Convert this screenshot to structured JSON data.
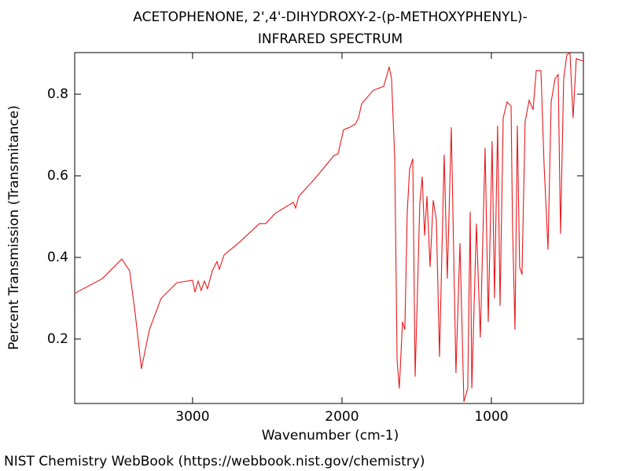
{
  "chart_data": {
    "type": "line",
    "title": "ACETOPHENONE, 2',4'-DIHYDROXY-2-(p-METHOXYPHENYL)-",
    "subtitle": "INFRARED SPECTRUM",
    "x_label": "Wavenumber (cm-1)",
    "y_label": "Percent Transmission (Transmitance)",
    "footer": "NIST Chemistry WebBook (https://webbook.nist.gov/chemistry)",
    "color": "#e8191c",
    "x_reversed": true,
    "xlim": [
      3789,
      384
    ],
    "ylim": [
      0.042,
      0.902
    ],
    "xticks": [
      3000,
      2000,
      1000
    ],
    "yticks": [
      0.2,
      0.4,
      0.6,
      0.8
    ],
    "x": [
      3789,
      3605,
      3474,
      3421,
      3384,
      3342,
      3289,
      3210,
      3105,
      3000,
      2984,
      2963,
      2942,
      2921,
      2900,
      2868,
      2837,
      2821,
      2789,
      2684,
      2553,
      2510,
      2447,
      2326,
      2310,
      2289,
      2184,
      2053,
      2026,
      1989,
      1947,
      1910,
      1889,
      1868,
      1789,
      1721,
      1684,
      1668,
      1647,
      1631,
      1616,
      1595,
      1579,
      1563,
      1547,
      1526,
      1510,
      1495,
      1479,
      1463,
      1447,
      1431,
      1410,
      1389,
      1368,
      1347,
      1316,
      1295,
      1268,
      1237,
      1210,
      1184,
      1158,
      1142,
      1131,
      1100,
      1074,
      1042,
      1021,
      995,
      979,
      958,
      942,
      921,
      895,
      868,
      858,
      842,
      826,
      811,
      795,
      774,
      747,
      721,
      700,
      668,
      647,
      621,
      600,
      574,
      553,
      537,
      516,
      495,
      474,
      453,
      432,
      384
    ],
    "values": [
      0.312,
      0.348,
      0.396,
      0.367,
      0.262,
      0.127,
      0.223,
      0.3,
      0.338,
      0.344,
      0.315,
      0.342,
      0.319,
      0.342,
      0.323,
      0.367,
      0.39,
      0.371,
      0.406,
      0.438,
      0.483,
      0.483,
      0.508,
      0.535,
      0.521,
      0.55,
      0.592,
      0.65,
      0.654,
      0.713,
      0.719,
      0.727,
      0.742,
      0.777,
      0.81,
      0.819,
      0.867,
      0.838,
      0.646,
      0.146,
      0.079,
      0.242,
      0.223,
      0.512,
      0.617,
      0.642,
      0.108,
      0.31,
      0.531,
      0.598,
      0.454,
      0.55,
      0.377,
      0.54,
      0.492,
      0.156,
      0.652,
      0.348,
      0.719,
      0.117,
      0.435,
      0.046,
      0.079,
      0.512,
      0.079,
      0.483,
      0.204,
      0.669,
      0.242,
      0.685,
      0.3,
      0.723,
      0.281,
      0.742,
      0.781,
      0.771,
      0.473,
      0.223,
      0.723,
      0.377,
      0.358,
      0.733,
      0.785,
      0.762,
      0.858,
      0.858,
      0.627,
      0.419,
      0.781,
      0.838,
      0.848,
      0.458,
      0.838,
      0.896,
      0.902,
      0.742,
      0.887,
      0.881
    ]
  }
}
